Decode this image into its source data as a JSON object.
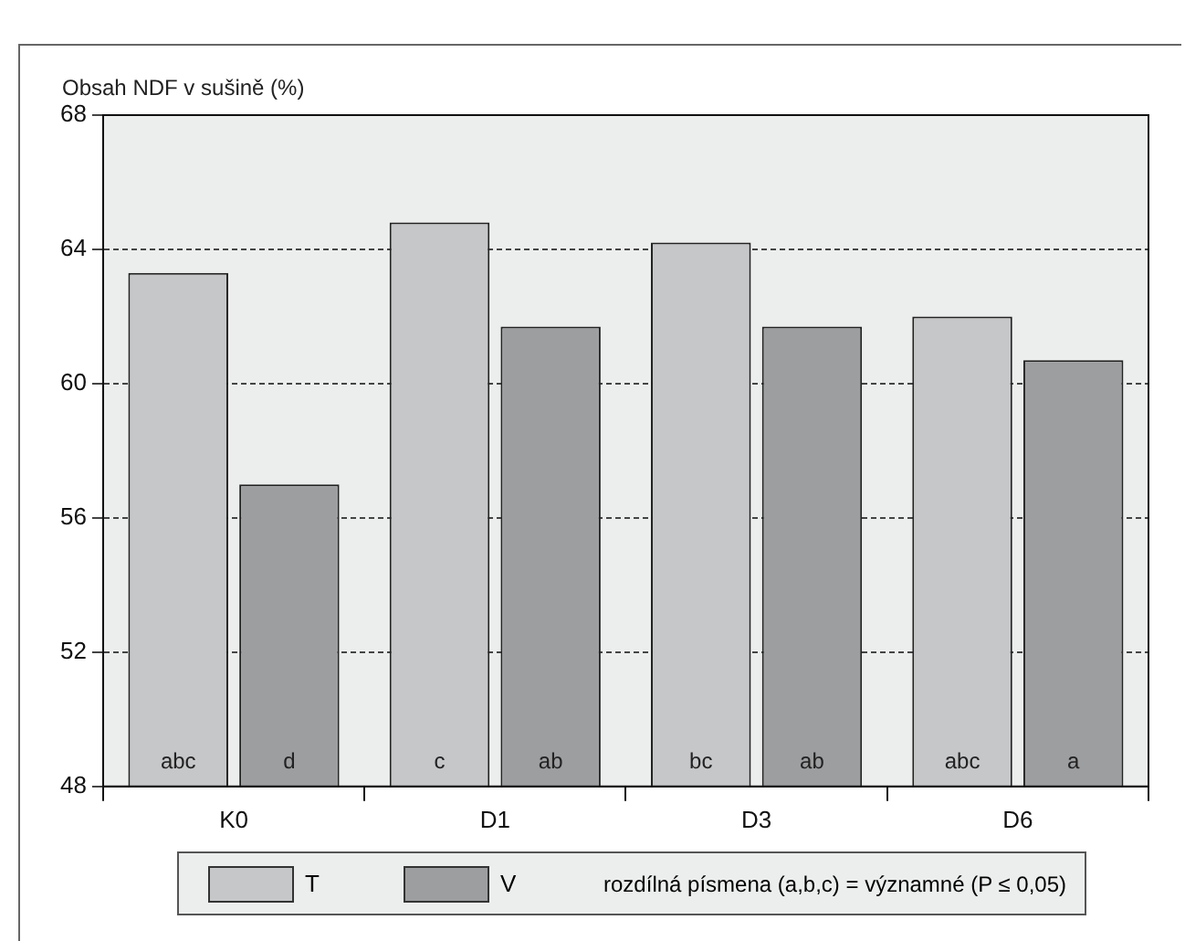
{
  "chart_data": {
    "type": "bar",
    "ylabel": "Obsah NDF v sušině (%)",
    "categories": [
      "K0",
      "D1",
      "D3",
      "D6"
    ],
    "series": [
      {
        "name": "T",
        "color": "#c6c7c9",
        "values": [
          63.3,
          64.8,
          64.2,
          62.0
        ],
        "value_labels": [
          "abc",
          "c",
          "bc",
          "abc"
        ]
      },
      {
        "name": "V",
        "color": "#9d9ea0",
        "values": [
          57.0,
          61.7,
          61.7,
          60.7
        ],
        "value_labels": [
          "d",
          "ab",
          "ab",
          "a"
        ]
      }
    ],
    "ylim": [
      48,
      68
    ],
    "yticks": [
      48,
      52,
      56,
      60,
      64,
      68
    ],
    "grid": "y",
    "legend": "bottom",
    "annotations": [
      "rozdílná písmena (a,b,c) = významné (P ≤ 0,05)"
    ]
  }
}
